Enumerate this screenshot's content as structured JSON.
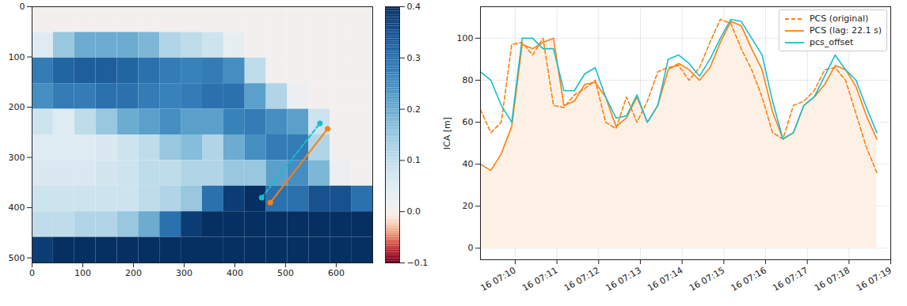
{
  "chart_data": [
    {
      "type": "heatmap",
      "xlim": [
        0,
        672
      ],
      "ylim": [
        510,
        0
      ],
      "xticks": [
        0,
        100,
        200,
        300,
        400,
        500,
        600
      ],
      "yticks": [
        0,
        100,
        200,
        300,
        400,
        500
      ],
      "x_edges": [
        0,
        42,
        84,
        126,
        168,
        210,
        252,
        294,
        336,
        378,
        420,
        462,
        504,
        546,
        588,
        630,
        672
      ],
      "y_edges": [
        0,
        51,
        102,
        153,
        204,
        255,
        306,
        357,
        408,
        459,
        510
      ],
      "cells": [
        [
          0,
          0,
          0,
          0,
          0,
          0,
          0,
          0,
          0,
          0,
          0,
          0,
          0,
          0,
          0,
          0
        ],
        [
          0.05,
          0.15,
          0.2,
          0.2,
          0.2,
          0.18,
          0.12,
          0.1,
          0.08,
          0.03,
          0,
          0,
          0,
          0,
          0,
          0
        ],
        [
          0.28,
          0.32,
          0.33,
          0.33,
          0.32,
          0.3,
          0.28,
          0.27,
          0.28,
          0.25,
          0.1,
          0,
          0,
          0,
          0,
          0
        ],
        [
          0.25,
          0.28,
          0.28,
          0.3,
          0.3,
          0.28,
          0.27,
          0.28,
          0.3,
          0.3,
          0.22,
          0.12,
          0.02,
          0,
          0,
          0
        ],
        [
          0.08,
          0.05,
          0.1,
          0.15,
          0.2,
          0.22,
          0.25,
          0.22,
          0.22,
          0.27,
          0.28,
          0.25,
          0.22,
          0.08,
          0,
          0
        ],
        [
          0.05,
          0.05,
          0.05,
          0.06,
          0.08,
          0.1,
          0.15,
          0.17,
          0.12,
          0.2,
          0.25,
          0.28,
          0.28,
          0.12,
          0,
          0
        ],
        [
          0.06,
          0.06,
          0.06,
          0.07,
          0.08,
          0.1,
          0.1,
          0.12,
          0.12,
          0.15,
          0.15,
          0.22,
          0.25,
          0.18,
          0.02,
          0
        ],
        [
          0.08,
          0.08,
          0.08,
          0.08,
          0.08,
          0.1,
          0.12,
          0.15,
          0.3,
          0.38,
          0.4,
          0.3,
          0.3,
          0.35,
          0.35,
          0.3
        ],
        [
          0.1,
          0.1,
          0.12,
          0.12,
          0.15,
          0.2,
          0.3,
          0.38,
          0.4,
          0.4,
          0.4,
          0.4,
          0.4,
          0.4,
          0.4,
          0.4
        ],
        [
          0.38,
          0.4,
          0.4,
          0.4,
          0.4,
          0.4,
          0.4,
          0.4,
          0.4,
          0.4,
          0.4,
          0.4,
          0.4,
          0.4,
          0.4,
          0.4
        ]
      ],
      "colorbar_lim": [
        -0.1,
        0.4
      ],
      "colorbar_ticks": [
        {
          "value": -0.1,
          "label": "−0.1"
        },
        {
          "value": 0,
          "label": "0.0"
        },
        0.1,
        0.2,
        0.3,
        0.4
      ],
      "series": [
        {
          "color": "#17becf",
          "line_style": "dashed",
          "marker": "circle",
          "x": [
            453,
            568
          ],
          "y": [
            380,
            232
          ]
        },
        {
          "color": "#ff7f0e",
          "line_style": "solid",
          "marker": "circle",
          "x": [
            470,
            583
          ],
          "y": [
            390,
            243
          ]
        }
      ]
    },
    {
      "type": "line",
      "ylabel": "ICA [m]",
      "grid": true,
      "legend": "upper right",
      "xlim": [
        "07:09:10",
        "07:19:00"
      ],
      "ylim": [
        -5.5,
        115
      ],
      "yticks": [
        0,
        20,
        40,
        60,
        80,
        100
      ],
      "xticks": [
        {
          "value": "07:10",
          "label": "16 07:10"
        },
        {
          "value": "07:11",
          "label": "16 07:11"
        },
        {
          "value": "07:12",
          "label": "16 07:12"
        },
        {
          "value": "07:13",
          "label": "16 07:13"
        },
        {
          "value": "07:14",
          "label": "16 07:14"
        },
        {
          "value": "07:15",
          "label": "16 07:15"
        },
        {
          "value": "07:16",
          "label": "16 07:16"
        },
        {
          "value": "07:17",
          "label": "16 07:17"
        },
        {
          "value": "07:18",
          "label": "16 07:18"
        },
        {
          "value": "07:19",
          "label": "16 07:19"
        }
      ],
      "x": [
        "07:09:10",
        "07:09:25",
        "07:09:40",
        "07:09:55",
        "07:10:10",
        "07:10:25",
        "07:10:40",
        "07:10:55",
        "07:11:10",
        "07:11:25",
        "07:11:40",
        "07:11:55",
        "07:12:10",
        "07:12:25",
        "07:12:40",
        "07:12:55",
        "07:13:10",
        "07:13:25",
        "07:13:40",
        "07:13:55",
        "07:14:10",
        "07:14:25",
        "07:14:40",
        "07:14:55",
        "07:15:10",
        "07:15:25",
        "07:15:40",
        "07:15:55",
        "07:16:10",
        "07:16:25",
        "07:16:40",
        "07:16:55",
        "07:17:10",
        "07:17:25",
        "07:17:40",
        "07:17:55",
        "07:18:10",
        "07:18:25",
        "07:18:40"
      ],
      "series": [
        {
          "name": "PCS (original)",
          "color": "#ff7f0e",
          "line_style": "dashed",
          "values": [
            66,
            55,
            60,
            97,
            98,
            92,
            100,
            68,
            67,
            73,
            76,
            80,
            60,
            57,
            72,
            60,
            70,
            84,
            86,
            87,
            80,
            86,
            98,
            109,
            107,
            95,
            85,
            72,
            55,
            52,
            68,
            70,
            75,
            85,
            86,
            80,
            64,
            48,
            36
          ]
        },
        {
          "name": "PCS (lag: 22.1 s)",
          "color": "#ff7f0e",
          "line_style": "solid",
          "values": [
            40,
            37,
            45,
            58,
            97,
            95,
            98,
            100,
            68,
            70,
            78,
            79,
            72,
            58,
            62,
            72,
            60,
            68,
            85,
            88,
            85,
            80,
            86,
            98,
            108,
            106,
            95,
            85,
            65,
            52,
            55,
            68,
            72,
            78,
            87,
            85,
            77,
            63,
            52
          ]
        },
        {
          "name": "pcs_offset",
          "color": "#17becf",
          "line_style": "solid",
          "values": [
            84,
            80,
            68,
            60,
            100,
            100,
            95,
            95,
            75,
            75,
            83,
            86,
            72,
            62,
            63,
            73,
            60,
            68,
            90,
            92,
            88,
            82,
            90,
            100,
            109,
            108,
            100,
            92,
            70,
            52,
            55,
            68,
            72,
            82,
            92,
            85,
            80,
            67,
            55
          ]
        }
      ]
    }
  ]
}
